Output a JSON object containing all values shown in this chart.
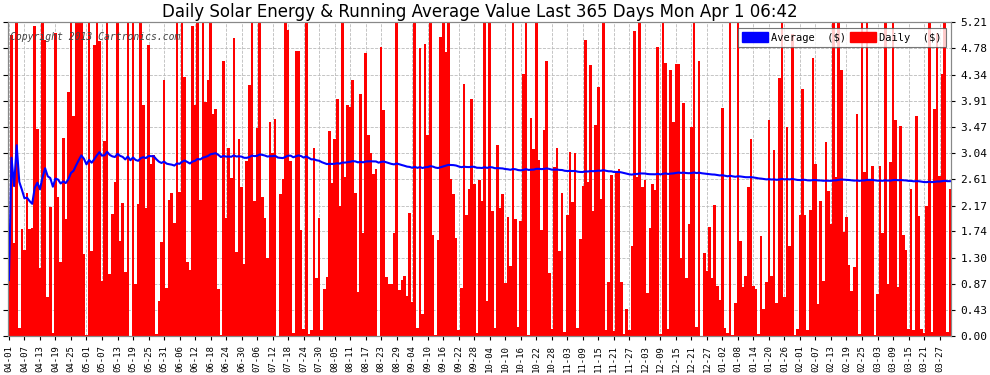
{
  "title": "Daily Solar Energy & Running Average Value Last 365 Days Mon Apr 1 06:42",
  "copyright": "Copyright 2013 Cartronics.com",
  "ylabel_right_ticks": [
    0.0,
    0.43,
    0.87,
    1.3,
    1.74,
    2.17,
    2.61,
    3.04,
    3.47,
    3.91,
    4.34,
    4.78,
    5.21
  ],
  "ylim": [
    0.0,
    5.21
  ],
  "bar_color": "#FF0000",
  "avg_line_color": "#0000FF",
  "background_color": "#FFFFFF",
  "grid_color": "#BBBBBB",
  "title_fontsize": 12,
  "legend_avg_color": "#0000FF",
  "legend_daily_color": "#FF0000",
  "legend_avg_label": "Average  ($)",
  "legend_daily_label": "Daily  ($)"
}
